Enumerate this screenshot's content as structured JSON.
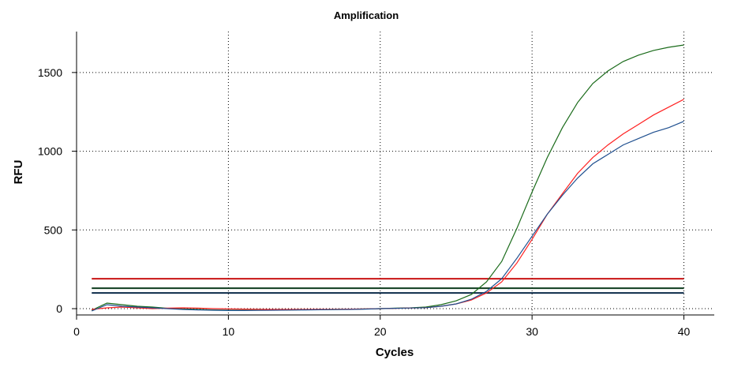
{
  "chart_data": {
    "type": "line",
    "title": "Amplification",
    "xlabel": "Cycles",
    "ylabel": "RFU",
    "xlim": [
      0,
      42
    ],
    "ylim": [
      -40,
      1760
    ],
    "x_ticks": [
      0,
      10,
      20,
      30,
      40
    ],
    "y_ticks": [
      0,
      500,
      1000,
      1500
    ],
    "grid": true,
    "legend": "none",
    "x": [
      1,
      2,
      3,
      4,
      5,
      6,
      7,
      8,
      9,
      10,
      11,
      12,
      13,
      14,
      15,
      16,
      17,
      18,
      19,
      20,
      21,
      22,
      23,
      24,
      25,
      26,
      27,
      28,
      29,
      30,
      31,
      32,
      33,
      34,
      35,
      36,
      37,
      38,
      39,
      40
    ],
    "series": [
      {
        "color": "#1a6b1a",
        "values": [
          -10,
          35,
          25,
          15,
          10,
          2,
          -2,
          -5,
          -8,
          -10,
          -10,
          -9,
          -8,
          -8,
          -7,
          -6,
          -5,
          -4,
          -2,
          0,
          3,
          5,
          10,
          25,
          50,
          90,
          170,
          300,
          510,
          740,
          960,
          1150,
          1310,
          1430,
          1510,
          1570,
          1610,
          1640,
          1660,
          1675
        ]
      },
      {
        "color": "#ff2020",
        "values": [
          -5,
          5,
          10,
          5,
          0,
          3,
          5,
          3,
          0,
          -2,
          -3,
          -4,
          -5,
          -5,
          -5,
          -4,
          -4,
          -3,
          -2,
          0,
          2,
          4,
          6,
          15,
          30,
          55,
          100,
          170,
          290,
          440,
          600,
          730,
          860,
          960,
          1040,
          1110,
          1170,
          1230,
          1280,
          1330
        ]
      },
      {
        "color": "#1f4f8f",
        "values": [
          -15,
          25,
          15,
          10,
          5,
          0,
          -5,
          -8,
          -10,
          -12,
          -12,
          -11,
          -10,
          -9,
          -8,
          -7,
          -6,
          -5,
          -3,
          0,
          2,
          4,
          6,
          15,
          30,
          60,
          110,
          190,
          320,
          460,
          600,
          720,
          830,
          920,
          980,
          1040,
          1080,
          1120,
          1150,
          1190
        ]
      }
    ],
    "thresholds": [
      {
        "value": 190,
        "color": "#c81414"
      },
      {
        "value": 130,
        "color": "#0e3d1e"
      },
      {
        "value": 100,
        "color": "#0d2c4a"
      }
    ],
    "style": {
      "background": "#ffffff",
      "grid_color": "#000000",
      "axis_color": "#000000"
    }
  }
}
